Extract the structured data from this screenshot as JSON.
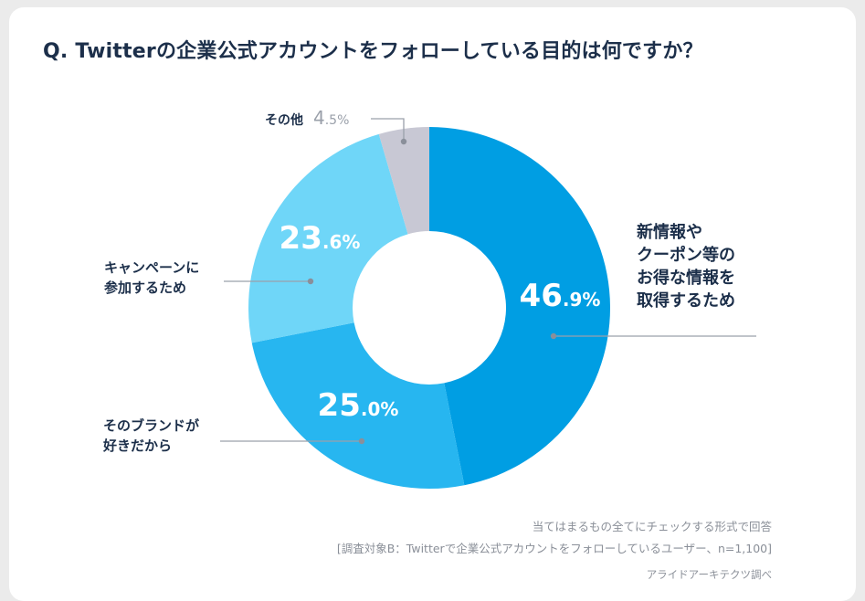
{
  "chart_data": {
    "type": "pie",
    "title": "Q. Twitterの企業公式アカウントをフォローしている目的は何ですか？",
    "slices": [
      {
        "label_lines": [
          "新情報や",
          "クーポン等の",
          "お得な情報を",
          "取得するため"
        ],
        "value": 46.9,
        "value_big": "46",
        "value_small": ".9%",
        "color": "#009ee3"
      },
      {
        "label_lines": [
          "そのブランドが",
          "好きだから"
        ],
        "value": 25.0,
        "value_big": "25",
        "value_small": ".0%",
        "color": "#27b6f0"
      },
      {
        "label_lines": [
          "キャンペーンに",
          "参加するため"
        ],
        "value": 23.6,
        "value_big": "23",
        "value_small": ".6%",
        "color": "#6fd6f8"
      },
      {
        "label_lines": [
          "その他"
        ],
        "value": 4.5,
        "value_big": "4",
        "value_small": ".5%",
        "color": "#c8c8d4"
      }
    ]
  },
  "notes": {
    "line1": "当てはまるもの全てにチェックする形式で回答",
    "line2": "[調査対象B：Twitterで企業公式アカウントをフォローしているユーザー、n=1,100]",
    "source": "アライドアーキテクツ調べ"
  }
}
